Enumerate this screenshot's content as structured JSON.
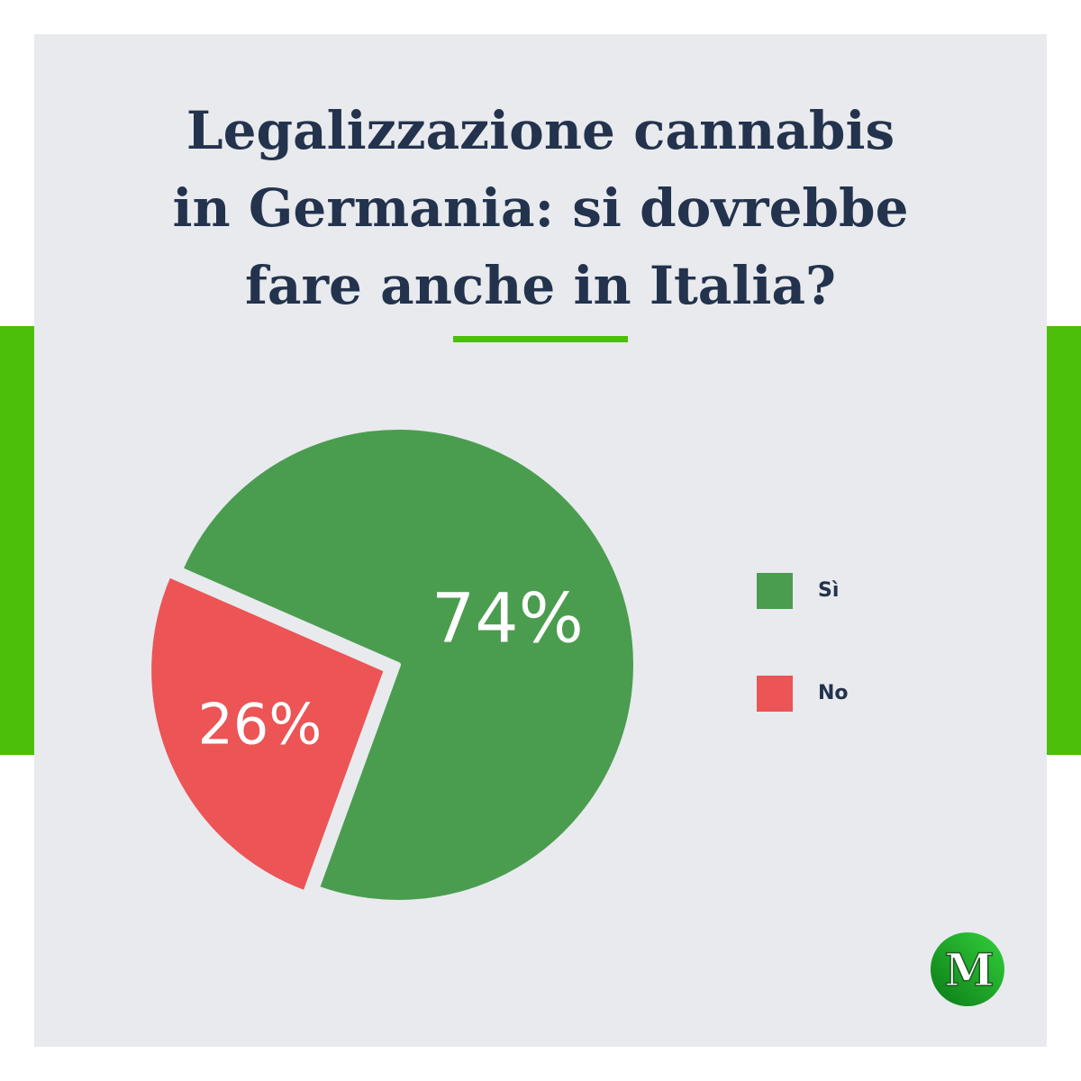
{
  "colors": {
    "accent_green": "#4bbf0a",
    "card_background": "#e8eaee",
    "title_text": "#23334d"
  },
  "title_lines": [
    "Legalizzazione cannabis",
    "in Germania: si dovrebbe",
    "fare anche in Italia?"
  ],
  "chart_data": {
    "type": "pie",
    "categories": [
      "Sì",
      "No"
    ],
    "values": [
      74,
      26
    ],
    "data_labels": [
      "74%",
      "26%"
    ],
    "colors": [
      "#4a9d4e",
      "#ec5455"
    ],
    "legend_position": "right"
  },
  "legend": [
    {
      "label": "Sì",
      "color": "#4a9d4e"
    },
    {
      "label": "No",
      "color": "#ec5455"
    }
  ],
  "logo": {
    "letter": "M",
    "icon": "magazine-logo-icon",
    "colors": [
      "#0a7a16",
      "#34d13c"
    ]
  }
}
